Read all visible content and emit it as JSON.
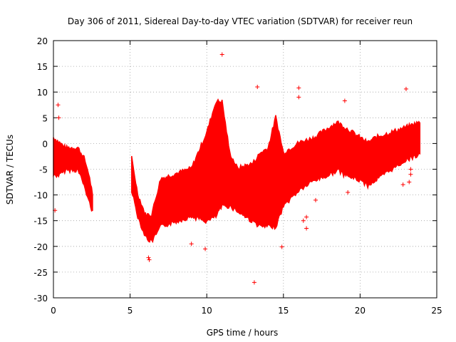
{
  "chart_data": {
    "type": "scatter",
    "title": "Day 306 of 2011, Sidereal Day-to-day VTEC variation (SDTVAR) for receiver reun",
    "xlabel": "GPS time / hours",
    "ylabel": "SDTVAR / TECUs",
    "xlim": [
      0,
      25
    ],
    "ylim": [
      -30,
      20
    ],
    "xticks": [
      0,
      5,
      10,
      15,
      20,
      25
    ],
    "yticks": [
      -30,
      -25,
      -20,
      -15,
      -10,
      -5,
      0,
      5,
      10,
      15,
      20
    ],
    "grid": true,
    "marker": "+",
    "color": "#ff0000",
    "series": [
      {
        "name": "SDTVAR",
        "band": [
          {
            "x": 0.0,
            "lo": -6,
            "hi": 1
          },
          {
            "x": 0.4,
            "lo": -6,
            "hi": 0
          },
          {
            "x": 0.8,
            "lo": -5,
            "hi": -1
          },
          {
            "x": 1.2,
            "lo": -5,
            "hi": -1
          },
          {
            "x": 1.6,
            "lo": -5,
            "hi": -1
          },
          {
            "x": 2.0,
            "lo": -8,
            "hi": -3
          },
          {
            "x": 2.3,
            "lo": -11,
            "hi": -6
          },
          {
            "x": 2.55,
            "lo": -13,
            "hi": -10
          },
          {
            "x": 5.1,
            "lo": -9,
            "hi": -3
          },
          {
            "x": 5.5,
            "lo": -14,
            "hi": -10
          },
          {
            "x": 6.0,
            "lo": -18,
            "hi": -14
          },
          {
            "x": 6.4,
            "lo": -19,
            "hi": -14
          },
          {
            "x": 7.0,
            "lo": -16,
            "hi": -7
          },
          {
            "x": 8.0,
            "lo": -15,
            "hi": -6
          },
          {
            "x": 9.0,
            "lo": -14,
            "hi": -5
          },
          {
            "x": 10.0,
            "lo": -15,
            "hi": 2
          },
          {
            "x": 10.6,
            "lo": -14,
            "hi": 8
          },
          {
            "x": 11.0,
            "lo": -12,
            "hi": 8
          },
          {
            "x": 11.5,
            "lo": -12,
            "hi": -2
          },
          {
            "x": 12.0,
            "lo": -13,
            "hi": -5
          },
          {
            "x": 13.0,
            "lo": -15,
            "hi": -4
          },
          {
            "x": 13.5,
            "lo": -16,
            "hi": -2
          },
          {
            "x": 14.0,
            "lo": -16,
            "hi": -1
          },
          {
            "x": 14.5,
            "lo": -16,
            "hi": 5
          },
          {
            "x": 15.0,
            "lo": -12,
            "hi": -2
          },
          {
            "x": 16.0,
            "lo": -9,
            "hi": 0
          },
          {
            "x": 17.0,
            "lo": -7,
            "hi": 1
          },
          {
            "x": 18.0,
            "lo": -6,
            "hi": 3
          },
          {
            "x": 18.5,
            "lo": -5,
            "hi": 4
          },
          {
            "x": 19.0,
            "lo": -6,
            "hi": 3
          },
          {
            "x": 20.0,
            "lo": -7,
            "hi": 1
          },
          {
            "x": 20.5,
            "lo": -8,
            "hi": 0
          },
          {
            "x": 21.0,
            "lo": -7,
            "hi": 1
          },
          {
            "x": 22.0,
            "lo": -5,
            "hi": 2
          },
          {
            "x": 23.0,
            "lo": -3,
            "hi": 3
          },
          {
            "x": 23.9,
            "lo": -2,
            "hi": 4
          }
        ],
        "outliers": [
          [
            0.3,
            7.5
          ],
          [
            0.35,
            5.0
          ],
          [
            0.1,
            -13
          ],
          [
            6.2,
            -22.2
          ],
          [
            6.25,
            -22.6
          ],
          [
            9.0,
            -19.5
          ],
          [
            9.9,
            -20.5
          ],
          [
            11.0,
            17.3
          ],
          [
            13.1,
            -27
          ],
          [
            13.3,
            11.0
          ],
          [
            14.9,
            -20.1
          ],
          [
            16.0,
            10.8
          ],
          [
            16.0,
            9.0
          ],
          [
            16.3,
            -15.0
          ],
          [
            16.5,
            -14.3
          ],
          [
            16.5,
            -16.5
          ],
          [
            17.1,
            -11.0
          ],
          [
            19.0,
            8.3
          ],
          [
            19.2,
            -9.5
          ],
          [
            22.8,
            -8.0
          ],
          [
            23.0,
            10.6
          ],
          [
            23.2,
            -7.5
          ],
          [
            23.3,
            -5.0
          ],
          [
            23.3,
            -6.0
          ]
        ]
      }
    ]
  }
}
